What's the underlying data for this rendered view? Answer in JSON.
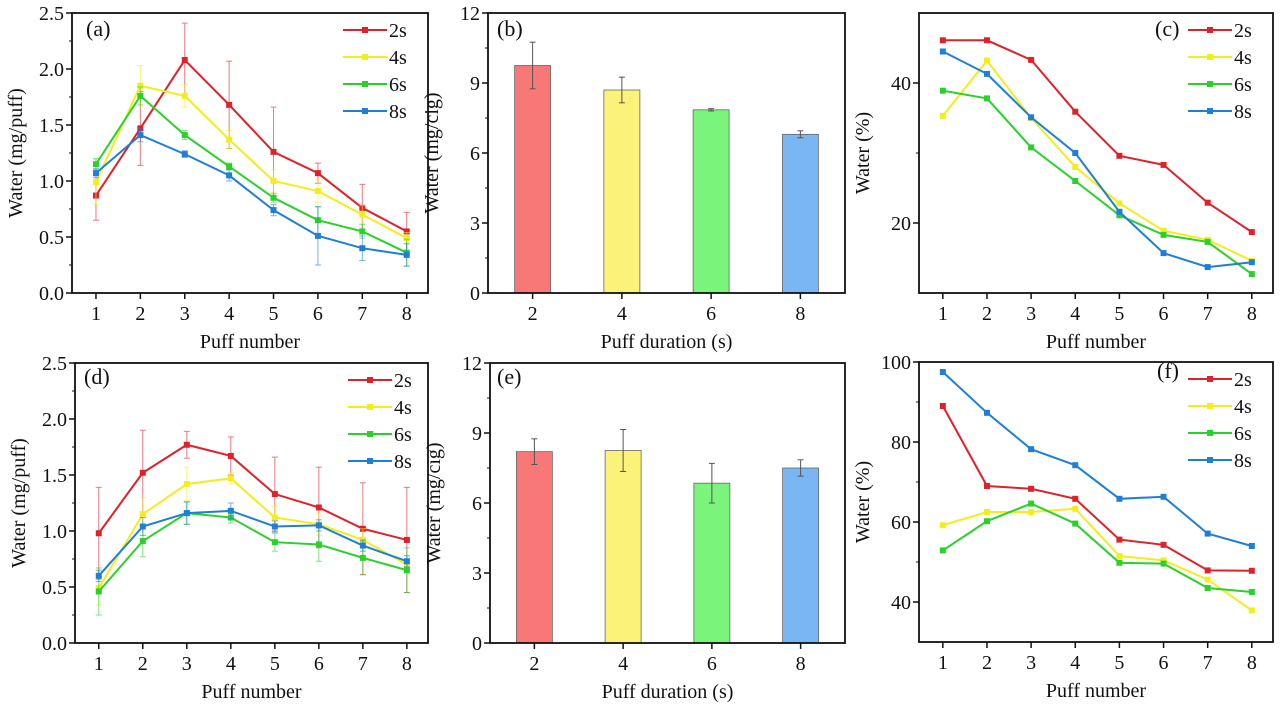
{
  "chart_data": [
    {
      "panel_label": "(a)",
      "type": "line",
      "x": [
        1,
        2,
        3,
        4,
        5,
        6,
        7,
        8
      ],
      "xlabel": "Puff number",
      "ylabel": "Water (mg/puff)",
      "ylim": [
        0,
        2.5
      ],
      "yticks": [
        "0.0",
        "0.5",
        "1.0",
        "1.5",
        "2.0",
        "2.5"
      ],
      "ytick_values": [
        0,
        0.5,
        1.0,
        1.5,
        2.0,
        2.5
      ],
      "legend": "top-right",
      "grid": false,
      "series": [
        {
          "name": "2s",
          "color": "#e0202a",
          "values": [
            0.87,
            1.47,
            2.08,
            1.68,
            1.26,
            1.07,
            0.76,
            0.55
          ],
          "errors": [
            0.22,
            0.33,
            0.33,
            0.39,
            0.4,
            0.09,
            0.21,
            0.17
          ]
        },
        {
          "name": "4s",
          "color": "#f2ee1c",
          "values": [
            0.99,
            1.85,
            1.76,
            1.37,
            1.0,
            0.91,
            0.7,
            0.49
          ],
          "errors": [
            0.2,
            0.18,
            0.1,
            0.08,
            0.1,
            0.1,
            0.08,
            0.05
          ]
        },
        {
          "name": "6s",
          "color": "#2ad12a",
          "values": [
            1.15,
            1.76,
            1.41,
            1.13,
            0.85,
            0.65,
            0.55,
            0.36
          ],
          "errors": [
            0.05,
            0.08,
            0.04,
            0.03,
            0.04,
            0.12,
            0.06,
            0.12
          ]
        },
        {
          "name": "8s",
          "color": "#1f7fd6",
          "values": [
            1.07,
            1.41,
            1.24,
            1.05,
            0.74,
            0.51,
            0.4,
            0.34
          ],
          "errors": [
            0.04,
            0.06,
            0.03,
            0.05,
            0.05,
            0.26,
            0.11,
            0.1
          ]
        }
      ]
    },
    {
      "panel_label": "(b)",
      "type": "bar",
      "categories": [
        "2",
        "4",
        "6",
        "8"
      ],
      "xlabel": "Puff duration (s)",
      "ylabel": "Water (mg/cig)",
      "ylim": [
        0,
        12
      ],
      "yticks": [
        "0",
        "3",
        "6",
        "9",
        "12"
      ],
      "ytick_values": [
        0,
        3,
        6,
        9,
        12
      ],
      "values": [
        9.75,
        8.7,
        7.85,
        6.8
      ],
      "errors": [
        1.0,
        0.55,
        0.05,
        0.15
      ],
      "colors": [
        "#f87878",
        "#fbf27a",
        "#7bf47b",
        "#7ab6f2"
      ]
    },
    {
      "panel_label": "(c)",
      "type": "line",
      "x": [
        1,
        2,
        3,
        4,
        5,
        6,
        7,
        8
      ],
      "xlabel": "Puff number",
      "ylabel": "Water (%)",
      "ylim": [
        10,
        50
      ],
      "yticks": [
        "20",
        "40"
      ],
      "ytick_values": [
        20,
        40
      ],
      "legend": "top-right",
      "grid": false,
      "series": [
        {
          "name": "2s",
          "color": "#e0202a",
          "values": [
            46.1,
            46.1,
            43.3,
            35.9,
            29.6,
            28.3,
            22.9,
            18.7
          ]
        },
        {
          "name": "4s",
          "color": "#f2ee1c",
          "values": [
            35.3,
            43.2,
            35.0,
            28.0,
            22.8,
            18.9,
            17.6,
            14.6
          ]
        },
        {
          "name": "6s",
          "color": "#2ad12a",
          "values": [
            38.9,
            37.8,
            30.8,
            26.0,
            21.1,
            18.3,
            17.3,
            12.7
          ]
        },
        {
          "name": "8s",
          "color": "#1f7fd6",
          "values": [
            44.5,
            41.3,
            35.1,
            30.0,
            21.6,
            15.7,
            13.7,
            14.4
          ]
        }
      ]
    },
    {
      "panel_label": "(d)",
      "type": "line",
      "x": [
        1,
        2,
        3,
        4,
        5,
        6,
        7,
        8
      ],
      "xlabel": "Puff number",
      "ylabel": "Water (mg/puff)",
      "ylim": [
        0,
        2.5
      ],
      "yticks": [
        "0.0",
        "0.5",
        "1.0",
        "1.5",
        "2.0",
        "2.5"
      ],
      "ytick_values": [
        0,
        0.5,
        1.0,
        1.5,
        2.0,
        2.5
      ],
      "legend": "top-right",
      "grid": false,
      "series": [
        {
          "name": "2s",
          "color": "#e0202a",
          "values": [
            0.98,
            1.52,
            1.77,
            1.67,
            1.33,
            1.21,
            1.02,
            0.92
          ],
          "errors": [
            0.41,
            0.38,
            0.12,
            0.17,
            0.33,
            0.36,
            0.41,
            0.47
          ]
        },
        {
          "name": "4s",
          "color": "#f2ee1c",
          "values": [
            0.49,
            1.15,
            1.42,
            1.47,
            1.12,
            1.06,
            0.92,
            0.7
          ],
          "errors": [
            0.15,
            0.15,
            0.15,
            0.05,
            0.1,
            0.1,
            0.1,
            0.08
          ]
        },
        {
          "name": "6s",
          "color": "#2ad12a",
          "values": [
            0.46,
            0.91,
            1.16,
            1.12,
            0.9,
            0.88,
            0.76,
            0.65
          ],
          "errors": [
            0.21,
            0.14,
            0.1,
            0.05,
            0.08,
            0.15,
            0.15,
            0.2
          ]
        },
        {
          "name": "8s",
          "color": "#1f7fd6",
          "values": [
            0.6,
            1.04,
            1.16,
            1.18,
            1.04,
            1.05,
            0.87,
            0.73
          ],
          "errors": [
            0.05,
            0.08,
            0.1,
            0.07,
            0.05,
            0.05,
            0.05,
            0.05
          ]
        }
      ]
    },
    {
      "panel_label": "(e)",
      "type": "bar",
      "categories": [
        "2",
        "4",
        "6",
        "8"
      ],
      "xlabel": "Puff duration (s)",
      "ylabel": "Water (mg/cig)",
      "ylim": [
        0,
        12
      ],
      "yticks": [
        "0",
        "3",
        "6",
        "9",
        "12"
      ],
      "ytick_values": [
        0,
        3,
        6,
        9,
        12
      ],
      "values": [
        8.2,
        8.25,
        6.85,
        7.5
      ],
      "errors": [
        0.55,
        0.9,
        0.85,
        0.35
      ],
      "colors": [
        "#f87878",
        "#fbf27a",
        "#7bf47b",
        "#7ab6f2"
      ]
    },
    {
      "panel_label": "(f)",
      "type": "line",
      "x": [
        1,
        2,
        3,
        4,
        5,
        6,
        7,
        8
      ],
      "xlabel": "Puff number",
      "ylabel": "Water (%)",
      "ylim": [
        30,
        100
      ],
      "yticks": [
        "40",
        "60",
        "80",
        "100"
      ],
      "ytick_values": [
        40,
        60,
        80,
        100
      ],
      "legend": "top-right",
      "grid": false,
      "series": [
        {
          "name": "2s",
          "color": "#e0202a",
          "values": [
            89.0,
            69.0,
            68.3,
            65.8,
            55.6,
            54.3,
            47.9,
            47.8
          ]
        },
        {
          "name": "4s",
          "color": "#f2ee1c",
          "values": [
            59.2,
            62.5,
            62.5,
            63.3,
            51.5,
            50.4,
            45.6,
            37.9
          ]
        },
        {
          "name": "6s",
          "color": "#2ad12a",
          "values": [
            52.9,
            60.2,
            64.6,
            59.6,
            49.8,
            49.6,
            43.5,
            42.5
          ]
        },
        {
          "name": "8s",
          "color": "#1f7fd6",
          "values": [
            97.5,
            87.3,
            78.2,
            74.2,
            65.8,
            66.3,
            57.1,
            54.0
          ]
        }
      ]
    }
  ]
}
